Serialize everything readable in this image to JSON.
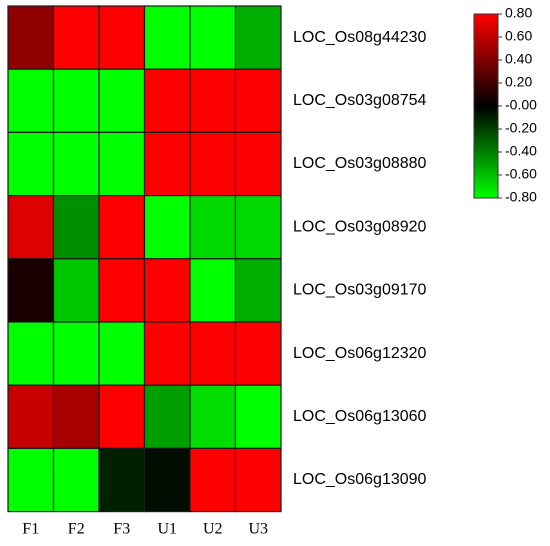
{
  "chart_data": {
    "type": "heatmap",
    "columns": [
      "F1",
      "F2",
      "F3",
      "U1",
      "U2",
      "U3"
    ],
    "rows": [
      "LOC_Os08g44230",
      "LOC_Os03g08754",
      "LOC_Os03g08880",
      "LOC_Os03g08920",
      "LOC_Os03g09170",
      "LOC_Os06g12320",
      "LOC_Os06g13060",
      "LOC_Os06g13090"
    ],
    "values": [
      [
        0.45,
        0.8,
        0.8,
        -0.8,
        -0.8,
        -0.55
      ],
      [
        -0.8,
        -0.8,
        -0.8,
        0.8,
        0.8,
        0.8
      ],
      [
        -0.8,
        -0.8,
        -0.8,
        0.8,
        0.8,
        0.8
      ],
      [
        0.7,
        -0.45,
        0.8,
        -0.8,
        -0.68,
        -0.68
      ],
      [
        0.08,
        -0.62,
        0.8,
        0.8,
        -0.8,
        -0.55
      ],
      [
        -0.8,
        -0.8,
        -0.8,
        0.8,
        0.8,
        0.8
      ],
      [
        0.62,
        0.52,
        0.8,
        -0.5,
        -0.7,
        -0.8
      ],
      [
        -0.8,
        -0.8,
        -0.1,
        -0.04,
        0.8,
        0.8
      ]
    ],
    "color_scale": {
      "min": -0.8,
      "mid": 0.0,
      "max": 0.8,
      "min_color": "#00ff00",
      "mid_color": "#000000",
      "max_color": "#ff0000"
    },
    "legend": {
      "placement": "top-right",
      "ticks": [
        "0.80",
        "0.60",
        "0.40",
        "0.20",
        "-0.00",
        "-0.20",
        "-0.40",
        "-0.60",
        "-0.80"
      ]
    },
    "grid": true
  }
}
